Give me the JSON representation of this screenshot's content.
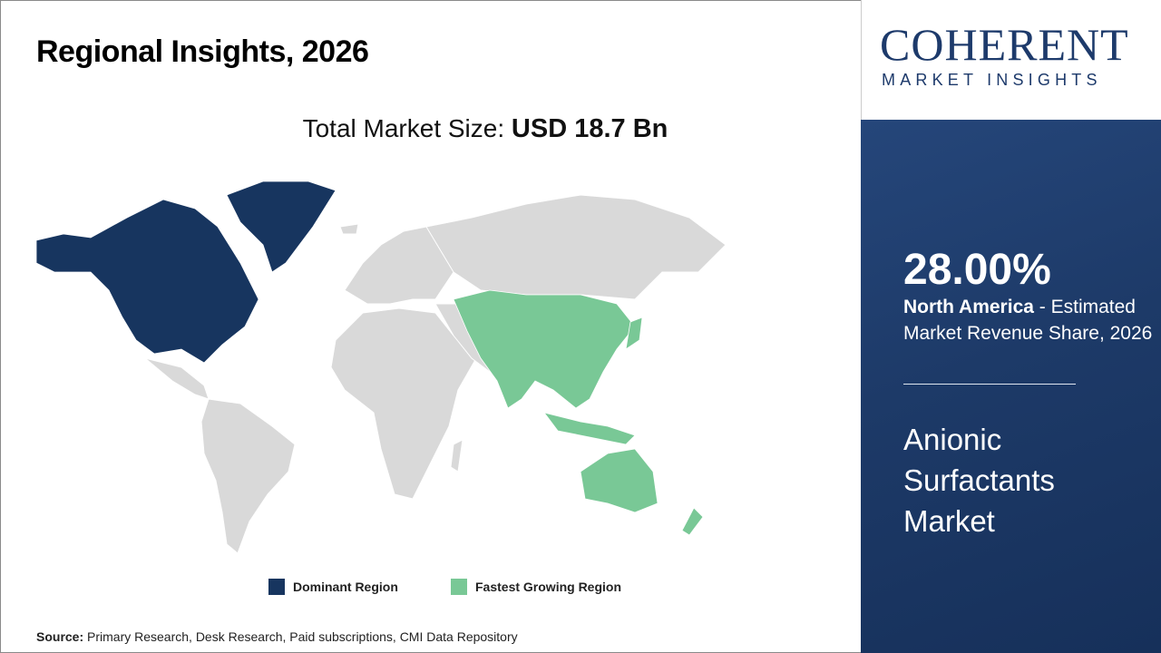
{
  "header": {
    "title": "Regional Insights, 2026"
  },
  "total_market": {
    "label": "Total Market Size:",
    "value": "USD 18.7 Bn"
  },
  "logo": {
    "name": "COHERENT",
    "tagline": "MARKET INSIGHTS"
  },
  "legend": [
    {
      "label": "Dominant Region",
      "color": "#17355f"
    },
    {
      "label": "Fastest Growing Region",
      "color": "#79c896"
    }
  ],
  "map": {
    "other_color": "#d9d9d9"
  },
  "source": {
    "label": "Source:",
    "text": "Primary Research, Desk Research, Paid subscriptions, CMI Data Repository"
  },
  "panel": {
    "share": "28.00%",
    "region": "North America",
    "share_desc": "- Estimated Market Revenue Share, 2026",
    "market_name": "Anionic Surfactants Market"
  }
}
